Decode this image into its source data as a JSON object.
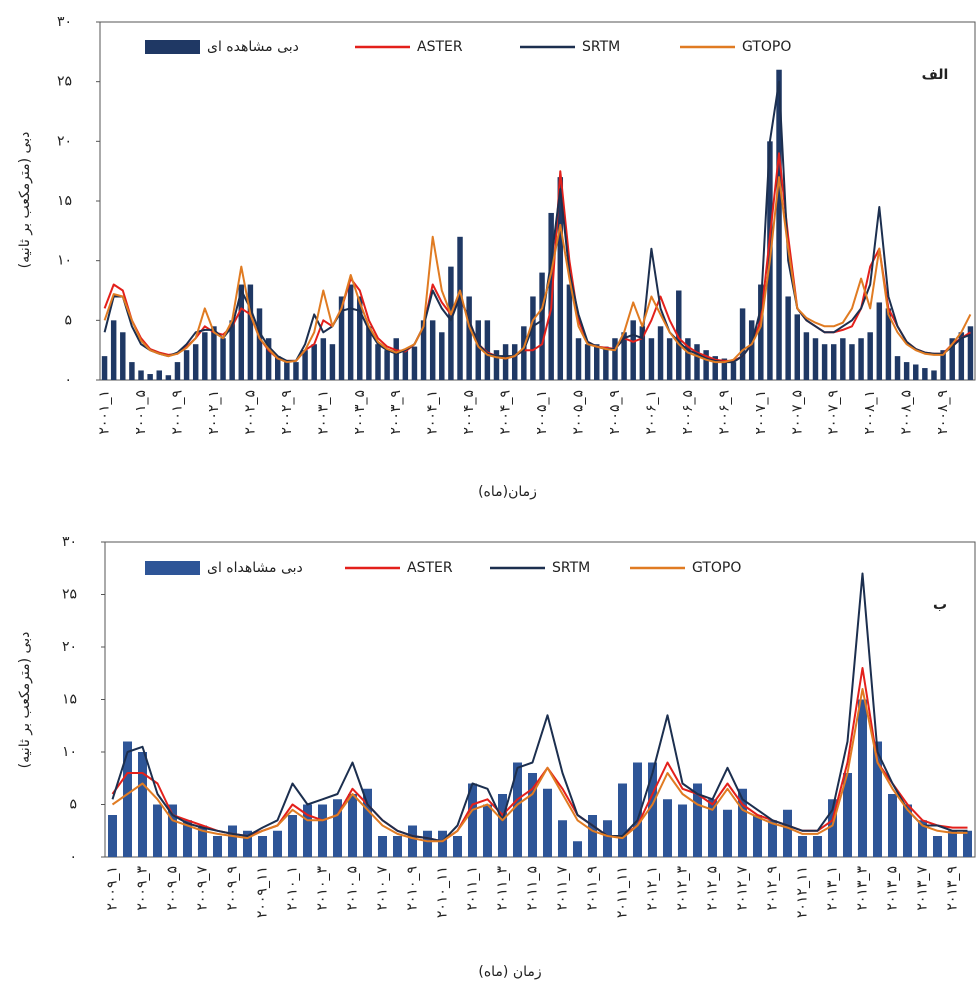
{
  "chart_data": [
    {
      "type": "bar_line",
      "panel_label": "الف",
      "x_label": "زمان(ماه)",
      "y_label": "دبی (مترمکعب بر ثانیه)",
      "ylim": [
        0,
        30
      ],
      "yticks": [
        {
          "value": 0,
          "label": "۰"
        },
        {
          "value": 5,
          "label": "۵"
        },
        {
          "value": 10,
          "label": "۱۰"
        },
        {
          "value": 15,
          "label": "۱۵"
        },
        {
          "value": 20,
          "label": "۲۰"
        },
        {
          "value": 25,
          "label": "۲۵"
        },
        {
          "value": 30,
          "label": "۳۰"
        }
      ],
      "categories": [
        "۲۰۰۱_۱",
        null,
        null,
        null,
        "۲۰۰۱_۵",
        null,
        null,
        null,
        "۲۰۰۱_۹",
        null,
        null,
        null,
        "۲۰۰۲_۱",
        null,
        null,
        null,
        "۲۰۰۲_۵",
        null,
        null,
        null,
        "۲۰۰۲_۹",
        null,
        null,
        null,
        "۲۰۰۳_۱",
        null,
        null,
        null,
        "۲۰۰۳_۵",
        null,
        null,
        null,
        "۲۰۰۳_۹",
        null,
        null,
        null,
        "۲۰۰۴_۱",
        null,
        null,
        null,
        "۲۰۰۴_۵",
        null,
        null,
        null,
        "۲۰۰۴_۹",
        null,
        null,
        null,
        "۲۰۰۵_۱",
        null,
        null,
        null,
        "۲۰۰۵_۵",
        null,
        null,
        null,
        "۲۰۰۵_۹",
        null,
        null,
        null,
        "۲۰۰۶_۱",
        null,
        null,
        null,
        "۲۰۰۶_۵",
        null,
        null,
        null,
        "۲۰۰۶_۹",
        null,
        null,
        null,
        "۲۰۰۷_۱",
        null,
        null,
        null,
        "۲۰۰۷_۵",
        null,
        null,
        null,
        "۲۰۰۷_۹",
        null,
        null,
        null,
        "۲۰۰۸_۱",
        null,
        null,
        null,
        "۲۰۰۸_۵",
        null,
        null,
        null,
        "۲۰۰۸_۹",
        null,
        null,
        null
      ],
      "series": [
        {
          "name": "دبی مشاهده ای",
          "kind": "bar",
          "color": "#1f3864",
          "values": [
            2,
            5,
            4,
            1.5,
            0.8,
            0.5,
            0.8,
            0.4,
            1.5,
            2.5,
            3,
            4,
            4.5,
            3.5,
            5,
            8,
            8,
            6,
            3.5,
            2,
            1.5,
            1.5,
            2.5,
            3,
            3.5,
            3,
            7,
            8,
            7,
            4.5,
            3,
            2.5,
            3.5,
            2.5,
            2.8,
            5,
            5,
            4,
            9.5,
            12,
            7,
            5,
            5,
            2.5,
            3,
            3,
            4.5,
            7,
            9,
            14,
            17,
            8,
            3.5,
            3,
            3,
            2.8,
            3.5,
            4,
            5,
            4.5,
            3.5,
            4.5,
            3.5,
            7.5,
            3.5,
            3,
            2.5,
            2,
            1.8,
            1.5,
            6,
            5,
            8,
            20,
            26,
            7,
            5.5,
            4,
            3.5,
            3,
            3,
            3.5,
            3,
            3.5,
            4,
            6.5,
            6,
            2,
            1.5,
            1.3,
            1,
            0.8,
            2.5,
            3.5,
            4,
            4.5
          ]
        },
        {
          "name": "ASTER",
          "kind": "line",
          "color": "#e3201b",
          "values": [
            6,
            8,
            7.5,
            5,
            3.5,
            2.6,
            2.3,
            2.1,
            2.2,
            2.8,
            3.5,
            4.5,
            4,
            3.8,
            4.5,
            6,
            5.5,
            3.5,
            2.5,
            1.8,
            1.6,
            1.6,
            2.5,
            3,
            5,
            4.5,
            6,
            8.5,
            7.5,
            5,
            3.5,
            2.8,
            2.5,
            2.4,
            3,
            4.5,
            8,
            6.5,
            5.5,
            7,
            5,
            3,
            2.3,
            2,
            1.8,
            2,
            2.5,
            2.5,
            3,
            6,
            17.5,
            10,
            5,
            3.2,
            2.8,
            2.7,
            2.6,
            3.5,
            3.2,
            3.5,
            5,
            7,
            5,
            3.5,
            2.8,
            2.3,
            2,
            1.7,
            1.6,
            1.6,
            2,
            3,
            5,
            12,
            19,
            12,
            6,
            5,
            4.5,
            4,
            4,
            4.2,
            4.5,
            6,
            9.5,
            11,
            6,
            4.5,
            3.2,
            2.6,
            2.3,
            2.2,
            2.2,
            3,
            3.5,
            4
          ]
        },
        {
          "name": "SRTM",
          "kind": "line",
          "color": "#1c2f4f",
          "values": [
            4,
            7,
            7,
            4.5,
            3,
            2.5,
            2.2,
            2,
            2.3,
            3,
            4,
            4.2,
            4.2,
            3.5,
            4.5,
            7.5,
            6,
            4,
            2.8,
            2,
            1.6,
            1.6,
            3,
            5.5,
            4,
            4.5,
            5.8,
            6,
            5.8,
            4.2,
            3,
            2.5,
            2.2,
            2.5,
            3,
            4.5,
            7.5,
            6,
            5,
            7,
            5,
            3,
            2.2,
            2,
            2,
            2,
            2.5,
            4.5,
            5,
            10,
            16,
            9,
            5.5,
            3.2,
            2.8,
            2.6,
            2.6,
            3.5,
            3.8,
            3.5,
            11,
            6,
            4,
            3.2,
            2.5,
            2.2,
            1.8,
            1.6,
            1.5,
            1.5,
            2,
            3,
            6,
            20,
            25,
            10,
            6,
            5,
            4.5,
            4,
            4,
            4.5,
            5,
            6,
            8,
            14.5,
            7,
            4.5,
            3.2,
            2.6,
            2.3,
            2.2,
            2.2,
            2.8,
            3.5,
            3.8
          ]
        },
        {
          "name": "GTOPO",
          "kind": "line",
          "color": "#e07b22",
          "values": [
            5,
            7.2,
            7,
            5,
            3.3,
            2.5,
            2.2,
            2,
            2.2,
            2.7,
            3.5,
            6,
            4,
            3.5,
            5,
            9.5,
            5.5,
            3.5,
            2.6,
            1.8,
            1.5,
            1.6,
            2.5,
            4,
            7.5,
            4.5,
            6,
            8.8,
            6.5,
            4.5,
            3.2,
            2.6,
            2.3,
            2.6,
            3,
            4.5,
            12,
            7.5,
            5.5,
            7.5,
            4.5,
            2.8,
            2.1,
            1.9,
            1.8,
            2,
            2.7,
            5,
            6,
            9,
            13,
            8.5,
            4.5,
            3,
            2.8,
            2.6,
            2.5,
            4,
            6.5,
            4.5,
            7,
            5.5,
            4,
            3,
            2.3,
            2,
            1.7,
            1.5,
            1.5,
            1.7,
            2.5,
            3,
            4.5,
            10,
            17,
            11,
            6,
            5.2,
            4.8,
            4.5,
            4.5,
            4.8,
            6,
            8.5,
            6,
            11,
            5.5,
            4,
            3,
            2.5,
            2.2,
            2.1,
            2.1,
            3,
            4,
            5.5
          ]
        }
      ]
    },
    {
      "type": "bar_line",
      "panel_label": "ب",
      "x_label": "زمان (ماه)",
      "y_label": "دبی (مترمکعب بر ثانیه)",
      "ylim": [
        0,
        30
      ],
      "yticks": [
        {
          "value": 0,
          "label": "۰"
        },
        {
          "value": 5,
          "label": "۵"
        },
        {
          "value": 10,
          "label": "۱۰"
        },
        {
          "value": 15,
          "label": "۱۵"
        },
        {
          "value": 20,
          "label": "۲۰"
        },
        {
          "value": 25,
          "label": "۲۵"
        },
        {
          "value": 30,
          "label": "۳۰"
        }
      ],
      "categories": [
        "۲۰۰۹_۱",
        null,
        "۲۰۰۹_۳",
        null,
        "۲۰۰۹_۵",
        null,
        "۲۰۰۹_۷",
        null,
        "۲۰۰۹_۹",
        null,
        "۲۰۰۹_۱۱",
        null,
        "۲۰۱۰_۱",
        null,
        "۲۰۱۰_۳",
        null,
        "۲۰۱۰_۵",
        null,
        "۲۰۱۰_۷",
        null,
        "۲۰۱۰_۹",
        null,
        "۲۰۱۰_۱۱",
        null,
        "۲۰۱۱_۱",
        null,
        "۲۰۱۱_۳",
        null,
        "۲۰۱۱_۵",
        null,
        "۲۰۱۱_۷",
        null,
        "۲۰۱۱_۹",
        null,
        "۲۰۱۱_۱۱",
        null,
        "۲۰۱۲_۱",
        null,
        "۲۰۱۲_۳",
        null,
        "۲۰۱۲_۵",
        null,
        "۲۰۱۲_۷",
        null,
        "۲۰۱۲_۹",
        null,
        "۲۰۱۲_۱۱",
        null,
        "۲۰۱۳_۱",
        null,
        "۲۰۱۳_۳",
        null,
        "۲۰۱۳_۵",
        null,
        "۲۰۱۳_۷",
        null,
        "۲۰۱۳_۹",
        null
      ],
      "series": [
        {
          "name": "دبی مشاهداه ای",
          "kind": "bar",
          "color": "#2e5597",
          "values": [
            4,
            11,
            10,
            5,
            5,
            3.5,
            3,
            2,
            3,
            2.5,
            2,
            2.5,
            4,
            5,
            5,
            5.5,
            6,
            6.5,
            2,
            2,
            3,
            2.5,
            2.5,
            2,
            7,
            5,
            6,
            9,
            8,
            6.5,
            3.5,
            1.5,
            4,
            3.5,
            7,
            9,
            9,
            5.5,
            5,
            7,
            5.5,
            4.5,
            6.5,
            4,
            3.5,
            4.5,
            2,
            2,
            5.5,
            8,
            15,
            11,
            6,
            5,
            3.5,
            2,
            2.5,
            2.5
          ]
        },
        {
          "name": "ASTER",
          "kind": "line",
          "color": "#e3201b",
          "values": [
            6,
            8,
            8,
            7,
            4,
            3.5,
            3,
            2.5,
            2.2,
            2,
            2.5,
            3,
            5,
            4,
            3.5,
            4,
            6.5,
            5,
            3.5,
            2.5,
            2,
            1.8,
            1.5,
            2.5,
            5,
            5.5,
            4,
            5.5,
            6.5,
            8.5,
            6.5,
            4,
            3,
            2,
            2,
            3,
            6,
            9,
            6.5,
            6,
            5,
            7,
            5,
            4,
            3.5,
            3,
            2.5,
            2.5,
            3.5,
            9,
            18,
            9,
            7,
            5,
            3.5,
            3,
            2.8,
            2.8
          ]
        },
        {
          "name": "SRTM",
          "kind": "line",
          "color": "#1c2f4f",
          "values": [
            5.5,
            10,
            10.5,
            6,
            4,
            3.2,
            2.8,
            2.5,
            2.2,
            2,
            2.8,
            3.5,
            7,
            5,
            5.5,
            6,
            9,
            5,
            3.5,
            2.5,
            2,
            1.8,
            1.5,
            3,
            7,
            6.5,
            3.5,
            8.5,
            9,
            13.5,
            8,
            4,
            3,
            2,
            2,
            3.5,
            8,
            13.5,
            7,
            6,
            5.5,
            8.5,
            5.5,
            4.5,
            3.5,
            3,
            2.5,
            2.5,
            4.5,
            11,
            27,
            10,
            7,
            4.5,
            3,
            3,
            2.5,
            2.5
          ]
        },
        {
          "name": "GTOPO",
          "kind": "line",
          "color": "#e07b22",
          "values": [
            5,
            6,
            7,
            5.5,
            3.5,
            3,
            2.5,
            2.2,
            2,
            1.8,
            2.5,
            3,
            4.5,
            3.5,
            3.5,
            4,
            6,
            4.5,
            3,
            2.2,
            1.8,
            1.5,
            1.5,
            2.5,
            4.5,
            5,
            3.5,
            5,
            6,
            8.5,
            6,
            3.5,
            2.5,
            2,
            1.8,
            3,
            5,
            8,
            6,
            5,
            4.5,
            6.5,
            4.5,
            3.8,
            3.2,
            2.8,
            2.2,
            2.2,
            3,
            8,
            16,
            9,
            6.5,
            4.5,
            3,
            2.5,
            2.3,
            2.3
          ]
        }
      ]
    }
  ]
}
